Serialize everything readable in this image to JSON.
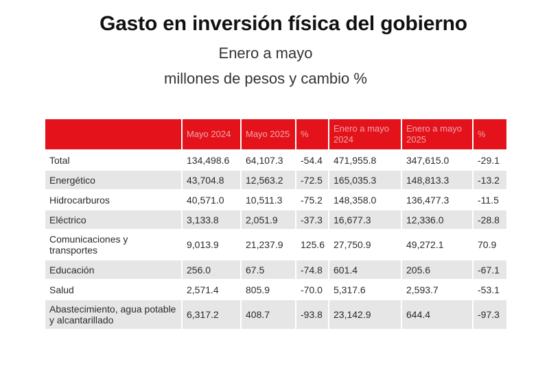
{
  "header": {
    "title": "Gasto en inversión física del gobierno",
    "subtitle_1": "Enero a mayo",
    "subtitle_2": "millones de pesos y cambio %"
  },
  "colors": {
    "header_bg": "#e3121b",
    "header_text": "#f0a7a9",
    "row_shade": "#e6e6e6"
  },
  "table": {
    "columns": [
      "",
      "Mayo 2024",
      "Mayo 2025",
      "%",
      "Enero a mayo 2024",
      "Enero a mayo 2025",
      "%"
    ],
    "rows": [
      [
        "Total",
        "134,498.6",
        "64,107.3",
        "-54.4",
        "471,955.8",
        "347,615.0",
        "-29.1"
      ],
      [
        "Energético",
        "43,704.8",
        "12,563.2",
        "-72.5",
        "165,035.3",
        "148,813.3",
        "-13.2"
      ],
      [
        "Hidrocarburos",
        "40,571.0",
        "10,511.3",
        "-75.2",
        "148,358.0",
        "136,477.3",
        "-11.5"
      ],
      [
        "Eléctrico",
        "3,133.8",
        "2,051.9",
        "-37.3",
        "16,677.3",
        "12,336.0",
        "-28.8"
      ],
      [
        "Comunicaciones y transportes",
        "9,013.9",
        "21,237.9",
        "125.6",
        "27,750.9",
        "49,272.1",
        "70.9"
      ],
      [
        "Educación",
        "256.0",
        "67.5",
        "-74.8",
        "601.4",
        "205.6",
        "-67.1"
      ],
      [
        "Salud",
        "2,571.4",
        "805.9",
        "-70.0",
        "5,317.6",
        "2,593.7",
        "-53.1"
      ],
      [
        "Abastecimiento, agua potable y alcantarillado",
        "6,317.2",
        "408.7",
        "-93.8",
        "23,142.9",
        "644.4",
        "-97.3"
      ]
    ]
  }
}
